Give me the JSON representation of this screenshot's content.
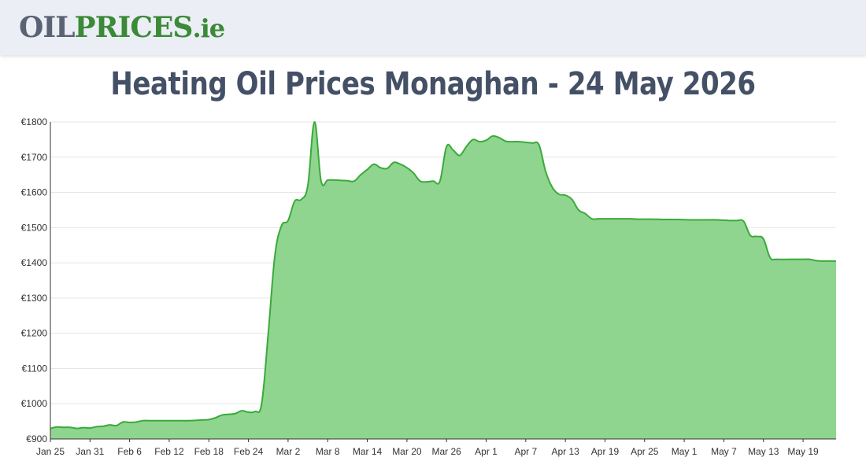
{
  "header": {
    "logo_part1": "OIL",
    "logo_part2": "PRICES",
    "logo_part3": ".ie"
  },
  "chart_data": {
    "type": "area",
    "title": "Heating Oil Prices Monaghan - 24 May 2026",
    "xlabel": "",
    "ylabel": "",
    "ylim": [
      900,
      1800
    ],
    "yticks": [
      "€900",
      "€1000",
      "€1100",
      "€1200",
      "€1300",
      "€1400",
      "€1500",
      "€1600",
      "€1700",
      "€1800"
    ],
    "ytick_values": [
      900,
      1000,
      1100,
      1200,
      1300,
      1400,
      1500,
      1600,
      1700,
      1800
    ],
    "xticks": [
      "Jan 25",
      "Jan 31",
      "Feb 6",
      "Feb 12",
      "Feb 18",
      "Feb 24",
      "Mar 2",
      "Mar 8",
      "Mar 14",
      "Mar 20",
      "Mar 26",
      "Apr 1",
      "Apr 7",
      "Apr 13",
      "Apr 19",
      "Apr 25",
      "May 1",
      "May 7",
      "May 13",
      "May 19"
    ],
    "xlim": [
      "2026-01-25",
      "2026-05-24"
    ],
    "grid": true,
    "colors": {
      "fill": "#8fd58f",
      "line": "#3aaa3a",
      "grid": "#e6e6e6",
      "axis": "#333333"
    },
    "series": [
      {
        "x": [
          "2026-01-25",
          "2026-01-26",
          "2026-01-27",
          "2026-01-28",
          "2026-01-29",
          "2026-01-30",
          "2026-01-31",
          "2026-02-01",
          "2026-02-02",
          "2026-02-03",
          "2026-02-04",
          "2026-02-05",
          "2026-02-06",
          "2026-02-07",
          "2026-02-08",
          "2026-02-09",
          "2026-02-10",
          "2026-02-12",
          "2026-02-15",
          "2026-02-17",
          "2026-02-18",
          "2026-02-19",
          "2026-02-20",
          "2026-02-21",
          "2026-02-22",
          "2026-02-23",
          "2026-02-24",
          "2026-02-25",
          "2026-02-26",
          "2026-02-27",
          "2026-02-28",
          "2026-03-01",
          "2026-03-02",
          "2026-03-03",
          "2026-03-04",
          "2026-03-05",
          "2026-03-06",
          "2026-03-07",
          "2026-03-08",
          "2026-03-09",
          "2026-03-10",
          "2026-03-11",
          "2026-03-12",
          "2026-03-13",
          "2026-03-14",
          "2026-03-15",
          "2026-03-16",
          "2026-03-17",
          "2026-03-18",
          "2026-03-19",
          "2026-03-20",
          "2026-03-21",
          "2026-03-22",
          "2026-03-23",
          "2026-03-24",
          "2026-03-25",
          "2026-03-26",
          "2026-03-27",
          "2026-03-28",
          "2026-03-29",
          "2026-03-30",
          "2026-03-31",
          "2026-04-01",
          "2026-04-02",
          "2026-04-03",
          "2026-04-04",
          "2026-04-05",
          "2026-04-06",
          "2026-04-07",
          "2026-04-08",
          "2026-04-09",
          "2026-04-10",
          "2026-04-11",
          "2026-04-12",
          "2026-04-13",
          "2026-04-14",
          "2026-04-15",
          "2026-04-16",
          "2026-04-17",
          "2026-04-18",
          "2026-04-19",
          "2026-04-20",
          "2026-04-21",
          "2026-04-22",
          "2026-04-23",
          "2026-04-24",
          "2026-04-26",
          "2026-04-28",
          "2026-04-30",
          "2026-05-02",
          "2026-05-04",
          "2026-05-06",
          "2026-05-08",
          "2026-05-09",
          "2026-05-10",
          "2026-05-11",
          "2026-05-12",
          "2026-05-13",
          "2026-05-14",
          "2026-05-15",
          "2026-05-17",
          "2026-05-19",
          "2026-05-20",
          "2026-05-21",
          "2026-05-22",
          "2026-05-23",
          "2026-05-24"
        ],
        "values": [
          930,
          934,
          933,
          933,
          930,
          932,
          931,
          935,
          936,
          940,
          938,
          948,
          947,
          948,
          952,
          952,
          952,
          952,
          952,
          954,
          955,
          960,
          968,
          970,
          972,
          980,
          976,
          978,
          1000,
          1200,
          1420,
          1505,
          1520,
          1575,
          1580,
          1620,
          1800,
          1632,
          1635,
          1635,
          1634,
          1633,
          1632,
          1650,
          1665,
          1680,
          1670,
          1668,
          1685,
          1680,
          1670,
          1655,
          1632,
          1630,
          1632,
          1632,
          1730,
          1720,
          1705,
          1730,
          1750,
          1744,
          1748,
          1760,
          1755,
          1745,
          1744,
          1744,
          1742,
          1740,
          1735,
          1660,
          1615,
          1595,
          1592,
          1580,
          1550,
          1540,
          1525,
          1525,
          1525,
          1525,
          1525,
          1525,
          1525,
          1524,
          1524,
          1523,
          1523,
          1522,
          1522,
          1522,
          1520,
          1520,
          1518,
          1478,
          1475,
          1468,
          1415,
          1410,
          1410,
          1410,
          1410,
          1406,
          1405,
          1405,
          1405
        ]
      }
    ]
  }
}
